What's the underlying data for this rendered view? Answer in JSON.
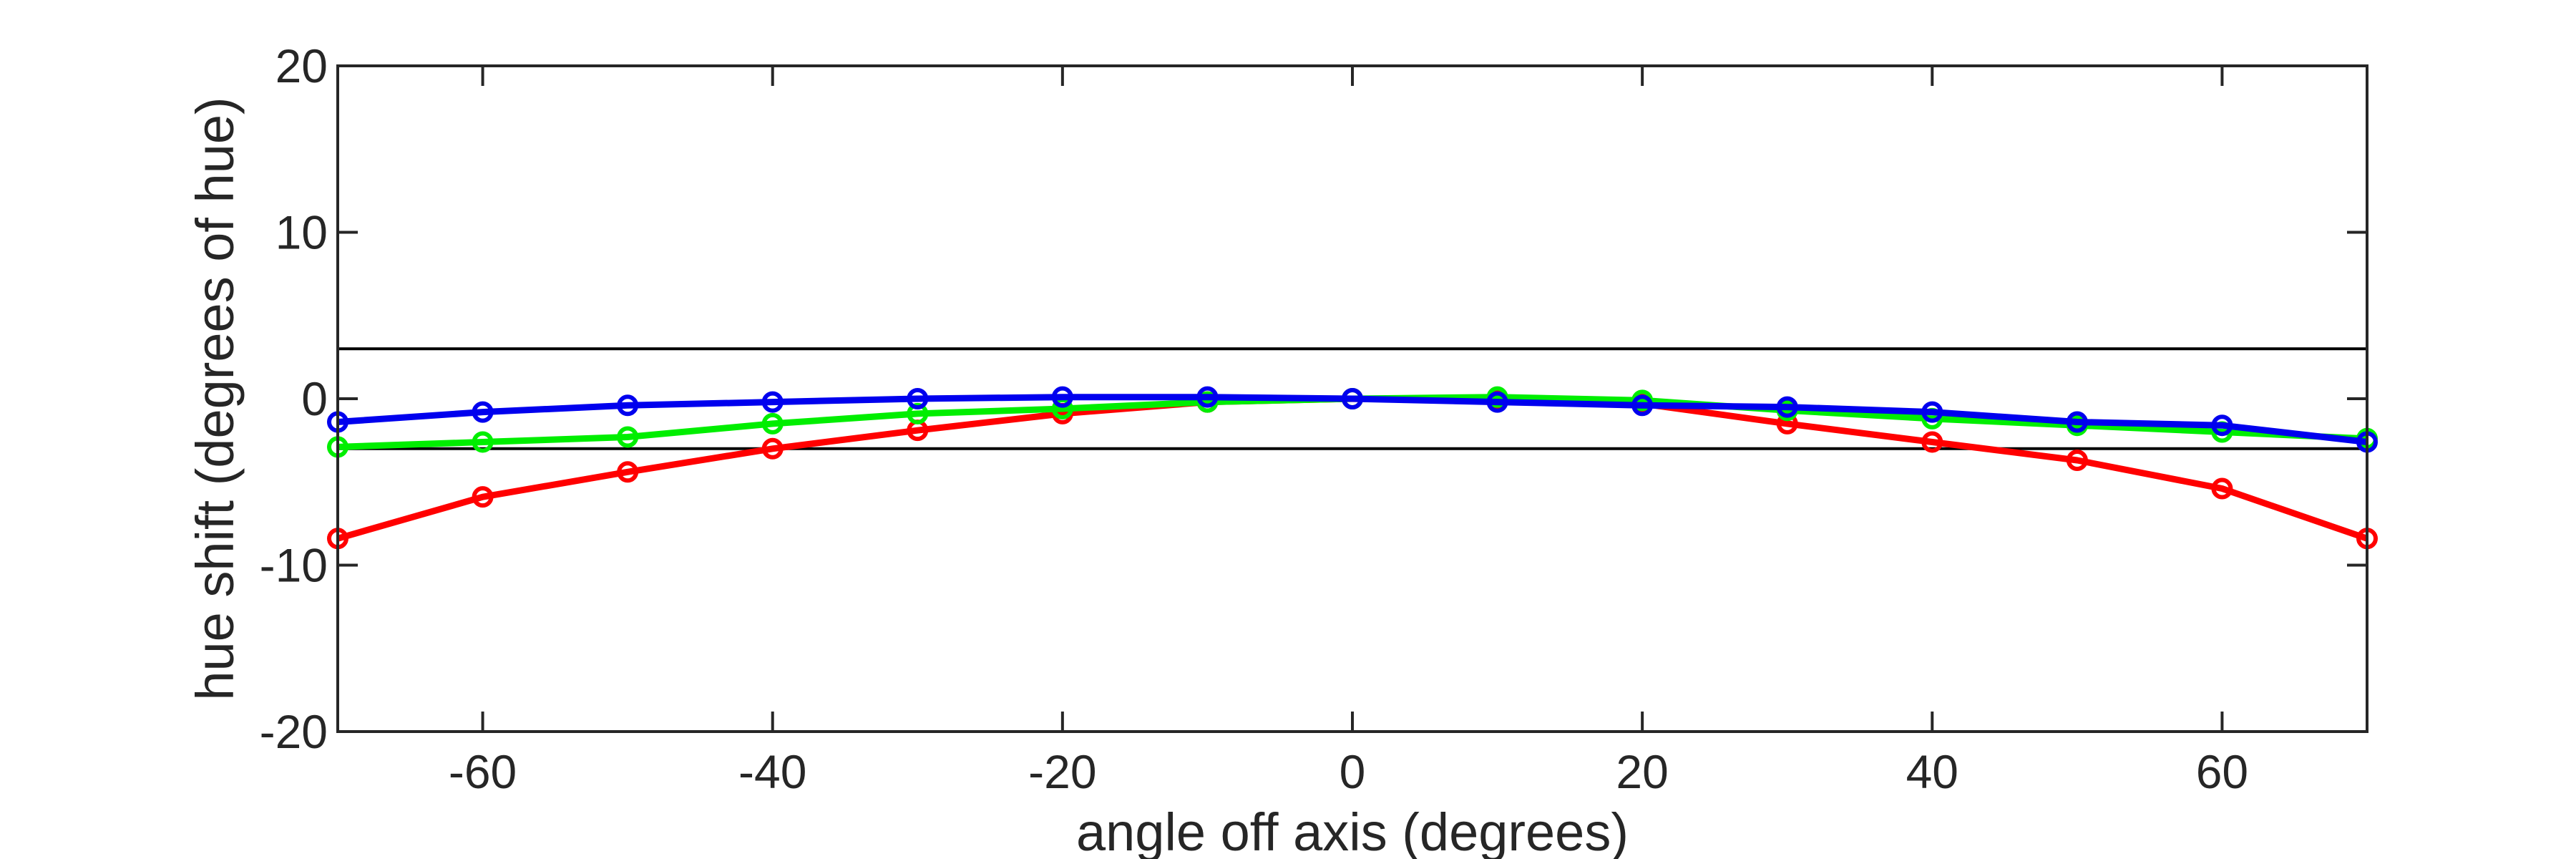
{
  "chart_data": {
    "type": "line",
    "title": "",
    "xlabel": "angle off axis (degrees)",
    "ylabel": "hue shift (degrees of hue)",
    "xlim": [
      -70,
      70
    ],
    "ylim": [
      -20,
      20
    ],
    "xticks": [
      -60,
      -40,
      -20,
      0,
      20,
      40,
      60
    ],
    "yticks": [
      -20,
      -10,
      0,
      10,
      20
    ],
    "grid": false,
    "legend": "none",
    "reference_lines_y": [
      3,
      -3
    ],
    "x": [
      -70,
      -60,
      -50,
      -40,
      -30,
      -20,
      -10,
      0,
      10,
      20,
      30,
      40,
      50,
      60,
      70
    ],
    "series": [
      {
        "color": "#ff0000",
        "values": [
          -8.4,
          -5.9,
          -4.4,
          -3.0,
          -1.9,
          -0.9,
          -0.2,
          0.0,
          -0.1,
          -0.3,
          -1.5,
          -2.6,
          -3.7,
          -5.4,
          -8.4
        ]
      },
      {
        "color": "#00ee00",
        "values": [
          -2.9,
          -2.6,
          -2.3,
          -1.5,
          -0.9,
          -0.6,
          -0.2,
          0.0,
          0.1,
          -0.1,
          -0.7,
          -1.2,
          -1.6,
          -2.0,
          -2.4
        ]
      },
      {
        "color": "#0000ee",
        "values": [
          -1.4,
          -0.8,
          -0.4,
          -0.2,
          0.0,
          0.1,
          0.1,
          0.0,
          -0.2,
          -0.4,
          -0.5,
          -0.8,
          -1.4,
          -1.6,
          -2.6
        ]
      }
    ]
  }
}
